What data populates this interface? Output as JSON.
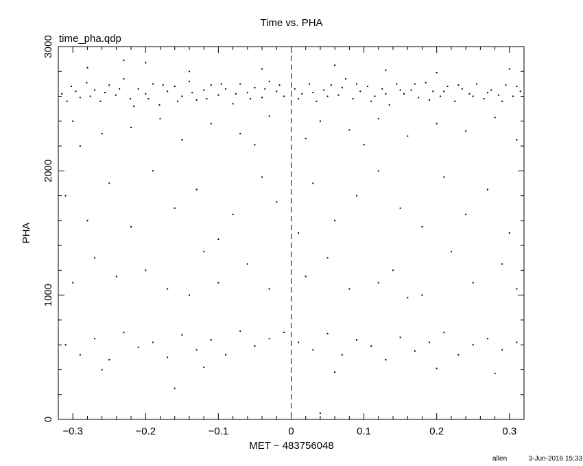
{
  "chart_data": {
    "type": "scatter",
    "title": "Time vs. PHA",
    "subtitle": "time_pha.qdp",
    "xlabel": "MET − 483756048",
    "ylabel": "PHA",
    "xlim": [
      -0.32,
      0.32
    ],
    "ylim": [
      0,
      3000
    ],
    "x_ticks": [
      -0.3,
      -0.2,
      -0.1,
      0,
      0.1,
      0.2,
      0.3
    ],
    "x_tick_labels": [
      "−0.3",
      "−0.2",
      "−0.1",
      "0",
      "0.1",
      "0.2",
      "0.3"
    ],
    "y_ticks": [
      0,
      1000,
      2000,
      3000
    ],
    "y_tick_labels": [
      "0",
      "1000",
      "2000",
      "3000"
    ],
    "x_minor_step": 0.02,
    "y_minor_step": 200,
    "grid": false,
    "reference_line": {
      "x": 0,
      "style": "dashed"
    },
    "marker_color": "#000000",
    "points": [
      [
        -0.315,
        2620
      ],
      [
        -0.302,
        2680
      ],
      [
        -0.29,
        2590
      ],
      [
        -0.281,
        2710
      ],
      [
        -0.27,
        2650
      ],
      [
        -0.262,
        2560
      ],
      [
        -0.25,
        2690
      ],
      [
        -0.241,
        2610
      ],
      [
        -0.23,
        2740
      ],
      [
        -0.221,
        2580
      ],
      [
        -0.21,
        2660
      ],
      [
        -0.2,
        2620
      ],
      [
        -0.19,
        2700
      ],
      [
        -0.181,
        2530
      ],
      [
        -0.17,
        2640
      ],
      [
        -0.16,
        2680
      ],
      [
        -0.15,
        2600
      ],
      [
        -0.14,
        2720
      ],
      [
        -0.13,
        2570
      ],
      [
        -0.12,
        2650
      ],
      [
        -0.11,
        2690
      ],
      [
        -0.1,
        2610
      ],
      [
        -0.09,
        2660
      ],
      [
        -0.08,
        2540
      ],
      [
        -0.07,
        2700
      ],
      [
        -0.06,
        2630
      ],
      [
        -0.05,
        2670
      ],
      [
        -0.04,
        2590
      ],
      [
        -0.03,
        2720
      ],
      [
        -0.02,
        2640
      ],
      [
        -0.01,
        2600
      ],
      [
        0.005,
        2660
      ],
      [
        0.015,
        2620
      ],
      [
        0.025,
        2700
      ],
      [
        0.035,
        2560
      ],
      [
        0.045,
        2650
      ],
      [
        0.055,
        2690
      ],
      [
        0.065,
        2610
      ],
      [
        0.075,
        2740
      ],
      [
        0.085,
        2580
      ],
      [
        0.095,
        2640
      ],
      [
        0.105,
        2680
      ],
      [
        0.115,
        2600
      ],
      [
        0.125,
        2660
      ],
      [
        0.135,
        2530
      ],
      [
        0.145,
        2700
      ],
      [
        0.155,
        2620
      ],
      [
        0.165,
        2650
      ],
      [
        0.175,
        2590
      ],
      [
        0.185,
        2710
      ],
      [
        0.195,
        2640
      ],
      [
        0.205,
        2600
      ],
      [
        0.215,
        2680
      ],
      [
        0.225,
        2560
      ],
      [
        0.235,
        2660
      ],
      [
        0.245,
        2620
      ],
      [
        0.255,
        2700
      ],
      [
        0.265,
        2580
      ],
      [
        0.275,
        2650
      ],
      [
        0.285,
        2610
      ],
      [
        0.295,
        2690
      ],
      [
        0.305,
        2600
      ],
      [
        0.315,
        2640
      ],
      [
        -0.308,
        2560
      ],
      [
        -0.296,
        2640
      ],
      [
        -0.276,
        2600
      ],
      [
        -0.256,
        2630
      ],
      [
        -0.236,
        2660
      ],
      [
        -0.216,
        2520
      ],
      [
        -0.196,
        2580
      ],
      [
        -0.176,
        2690
      ],
      [
        -0.156,
        2560
      ],
      [
        -0.136,
        2630
      ],
      [
        -0.116,
        2580
      ],
      [
        -0.096,
        2700
      ],
      [
        -0.076,
        2620
      ],
      [
        -0.056,
        2580
      ],
      [
        -0.036,
        2660
      ],
      [
        -0.016,
        2690
      ],
      [
        0.01,
        2580
      ],
      [
        0.03,
        2630
      ],
      [
        0.05,
        2600
      ],
      [
        0.07,
        2670
      ],
      [
        0.09,
        2700
      ],
      [
        0.11,
        2560
      ],
      [
        0.13,
        2620
      ],
      [
        0.15,
        2650
      ],
      [
        0.17,
        2700
      ],
      [
        0.19,
        2570
      ],
      [
        0.21,
        2640
      ],
      [
        0.23,
        2690
      ],
      [
        0.25,
        2600
      ],
      [
        0.27,
        2630
      ],
      [
        0.29,
        2560
      ],
      [
        0.31,
        2680
      ],
      [
        -0.28,
        2830
      ],
      [
        -0.2,
        2870
      ],
      [
        -0.14,
        2800
      ],
      [
        -0.04,
        2820
      ],
      [
        0.06,
        2850
      ],
      [
        0.13,
        2810
      ],
      [
        0.2,
        2790
      ],
      [
        0.3,
        2820
      ],
      [
        -0.23,
        2890
      ],
      [
        -0.3,
        2400
      ],
      [
        -0.26,
        2300
      ],
      [
        -0.22,
        2350
      ],
      [
        -0.18,
        2420
      ],
      [
        -0.15,
        2250
      ],
      [
        -0.11,
        2380
      ],
      [
        -0.07,
        2300
      ],
      [
        -0.03,
        2440
      ],
      [
        0.02,
        2260
      ],
      [
        0.04,
        2400
      ],
      [
        0.08,
        2330
      ],
      [
        0.12,
        2420
      ],
      [
        0.16,
        2280
      ],
      [
        0.2,
        2380
      ],
      [
        0.24,
        2320
      ],
      [
        0.28,
        2430
      ],
      [
        0.31,
        2250
      ],
      [
        -0.29,
        2200
      ],
      [
        0.1,
        2210
      ],
      [
        -0.05,
        2210
      ],
      [
        -0.31,
        1800
      ],
      [
        -0.28,
        1600
      ],
      [
        -0.25,
        1900
      ],
      [
        -0.22,
        1550
      ],
      [
        -0.19,
        2000
      ],
      [
        -0.16,
        1700
      ],
      [
        -0.13,
        1850
      ],
      [
        -0.1,
        1450
      ],
      [
        -0.08,
        1650
      ],
      [
        -0.04,
        1950
      ],
      [
        -0.02,
        1750
      ],
      [
        0.01,
        1500
      ],
      [
        0.03,
        1900
      ],
      [
        0.06,
        1600
      ],
      [
        0.09,
        1800
      ],
      [
        0.12,
        2000
      ],
      [
        0.15,
        1700
      ],
      [
        0.18,
        1550
      ],
      [
        0.21,
        1950
      ],
      [
        0.24,
        1650
      ],
      [
        0.27,
        1850
      ],
      [
        0.3,
        1500
      ],
      [
        -0.27,
        1300
      ],
      [
        -0.2,
        1200
      ],
      [
        -0.12,
        1350
      ],
      [
        -0.06,
        1250
      ],
      [
        0.05,
        1300
      ],
      [
        0.14,
        1200
      ],
      [
        0.22,
        1350
      ],
      [
        0.29,
        1250
      ],
      [
        -0.3,
        1100
      ],
      [
        -0.24,
        1150
      ],
      [
        -0.17,
        1050
      ],
      [
        -0.1,
        1100
      ],
      [
        -0.03,
        1050
      ],
      [
        0.02,
        1150
      ],
      [
        0.08,
        1050
      ],
      [
        0.12,
        1100
      ],
      [
        0.18,
        1000
      ],
      [
        0.25,
        1100
      ],
      [
        0.31,
        1050
      ],
      [
        -0.14,
        1000
      ],
      [
        0.16,
        980
      ],
      [
        -0.31,
        600
      ],
      [
        -0.29,
        520
      ],
      [
        -0.27,
        650
      ],
      [
        -0.25,
        480
      ],
      [
        -0.23,
        700
      ],
      [
        -0.21,
        580
      ],
      [
        -0.19,
        620
      ],
      [
        -0.17,
        500
      ],
      [
        -0.15,
        680
      ],
      [
        -0.13,
        560
      ],
      [
        -0.11,
        640
      ],
      [
        -0.09,
        520
      ],
      [
        -0.07,
        710
      ],
      [
        -0.05,
        590
      ],
      [
        -0.03,
        650
      ],
      [
        -0.01,
        700
      ],
      [
        0.01,
        620
      ],
      [
        0.03,
        560
      ],
      [
        0.05,
        690
      ],
      [
        0.07,
        520
      ],
      [
        0.09,
        640
      ],
      [
        0.11,
        590
      ],
      [
        0.13,
        480
      ],
      [
        0.15,
        660
      ],
      [
        0.17,
        550
      ],
      [
        0.19,
        620
      ],
      [
        0.21,
        700
      ],
      [
        0.23,
        520
      ],
      [
        0.25,
        600
      ],
      [
        0.27,
        650
      ],
      [
        0.29,
        560
      ],
      [
        0.31,
        620
      ],
      [
        -0.26,
        400
      ],
      [
        -0.12,
        420
      ],
      [
        0.06,
        380
      ],
      [
        0.2,
        410
      ],
      [
        0.28,
        370
      ],
      [
        -0.16,
        250
      ],
      [
        0.04,
        50
      ]
    ]
  },
  "footer": {
    "user": "allen",
    "timestamp": "3-Jun-2016 15:33"
  }
}
